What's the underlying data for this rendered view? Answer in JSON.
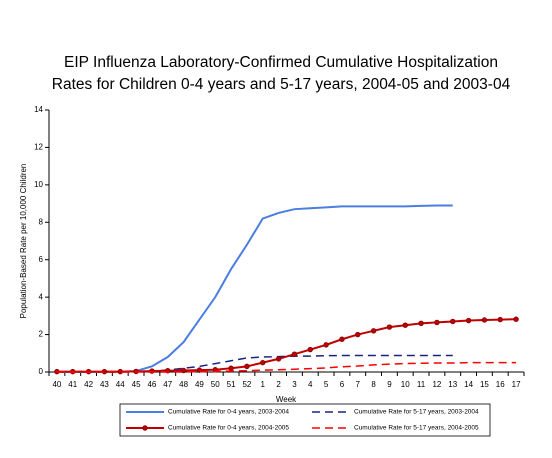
{
  "chart_data": {
    "type": "line",
    "title": [
      "EIP Influenza Laboratory-Confirmed Cumulative Hospitalization",
      "Rates for Children 0-4 years and 5-17 years, 2004-05 and 2003-04"
    ],
    "x_label": "Week",
    "y_label": "Population-Based Rate per 10,000 Children",
    "categories": [
      "40",
      "41",
      "42",
      "43",
      "44",
      "45",
      "46",
      "47",
      "48",
      "49",
      "50",
      "51",
      "52",
      "1",
      "2",
      "3",
      "4",
      "5",
      "6",
      "7",
      "8",
      "9",
      "10",
      "11",
      "12",
      "13",
      "14",
      "15",
      "16",
      "17"
    ],
    "ylim": [
      0,
      14
    ],
    "yticks": [
      0,
      2,
      4,
      6,
      8,
      10,
      12,
      14
    ],
    "grid": false,
    "series": [
      {
        "name": "Cumulative Rate for 0-4 years, 2003-2004",
        "color": "#4a7ee0",
        "style": "solid",
        "values": [
          0,
          0,
          0,
          0,
          0.02,
          0.05,
          0.3,
          0.8,
          1.6,
          2.8,
          4.0,
          5.5,
          6.8,
          8.2,
          8.5,
          8.7,
          8.75,
          8.8,
          8.85,
          8.85,
          8.85,
          8.85,
          8.85,
          8.88,
          8.9,
          8.9,
          null,
          null,
          null,
          null
        ]
      },
      {
        "name": "Cumulative Rate for 5-17 years, 2003-2004",
        "color": "#1a237e",
        "style": "dashed",
        "values": [
          0,
          0,
          0,
          0,
          0,
          0.02,
          0.05,
          0.1,
          0.2,
          0.3,
          0.45,
          0.6,
          0.75,
          0.8,
          0.82,
          0.85,
          0.85,
          0.87,
          0.88,
          0.88,
          0.88,
          0.88,
          0.88,
          0.88,
          0.88,
          0.88,
          null,
          null,
          null,
          null
        ]
      },
      {
        "name": "Cumulative Rate for 0-4 years, 2004-2005",
        "color": "#c00000",
        "style": "solid",
        "marker": "circle",
        "values": [
          0.02,
          0.02,
          0.02,
          0.02,
          0.02,
          0.03,
          0.05,
          0.07,
          0.08,
          0.1,
          0.12,
          0.2,
          0.3,
          0.5,
          0.7,
          0.95,
          1.2,
          1.45,
          1.75,
          2.0,
          2.2,
          2.4,
          2.5,
          2.6,
          2.65,
          2.7,
          2.75,
          2.78,
          2.8,
          2.82
        ]
      },
      {
        "name": "Cumulative Rate for 5-17 years, 2004-2005",
        "color": "#ff0000",
        "style": "dashed",
        "values": [
          0,
          0,
          0,
          0,
          0,
          0,
          0,
          0,
          0,
          0.02,
          0.03,
          0.05,
          0.07,
          0.1,
          0.12,
          0.15,
          0.18,
          0.22,
          0.28,
          0.32,
          0.38,
          0.42,
          0.45,
          0.47,
          0.48,
          0.48,
          0.5,
          0.5,
          0.5,
          0.5
        ]
      }
    ]
  }
}
